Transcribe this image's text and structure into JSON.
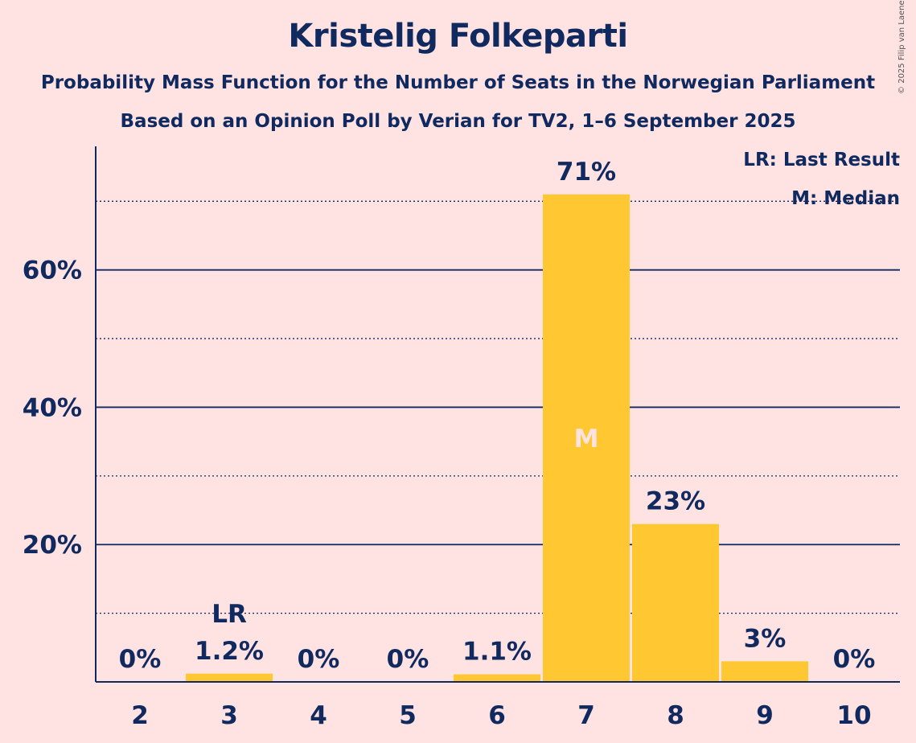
{
  "header": {
    "title": "Kristelig Folkeparti",
    "subtitle1": "Probability Mass Function for the Number of Seats in the Norwegian Parliament",
    "subtitle2": "Based on an Opinion Poll by Verian for TV2, 1–6 September 2025",
    "copyright": "© 2025 Filip van Laenen"
  },
  "legend": {
    "last_result": "LR: Last Result",
    "median": "M: Median"
  },
  "colors": {
    "background": "#ffe2e2",
    "bar": "#ffc832",
    "text": "#102a60"
  },
  "chart_data": {
    "type": "bar",
    "categories": [
      "2",
      "3",
      "4",
      "5",
      "6",
      "7",
      "8",
      "9",
      "10"
    ],
    "values": [
      0,
      1.2,
      0,
      0,
      1.1,
      71,
      23,
      3,
      0
    ],
    "value_labels": [
      "0%",
      "1.2%",
      "0%",
      "0%",
      "1.1%",
      "71%",
      "23%",
      "3%",
      "0%"
    ],
    "ylim": [
      0,
      78
    ],
    "y_major_ticks": [
      20,
      40,
      60
    ],
    "y_major_labels": [
      "20%",
      "40%",
      "60%"
    ],
    "y_minor_gridlines": [
      10,
      30,
      50,
      70
    ],
    "last_result_category": "3",
    "last_result_marker": "LR",
    "median_category": "7",
    "median_marker": "M",
    "grid": true,
    "legend_position": "top-right"
  }
}
